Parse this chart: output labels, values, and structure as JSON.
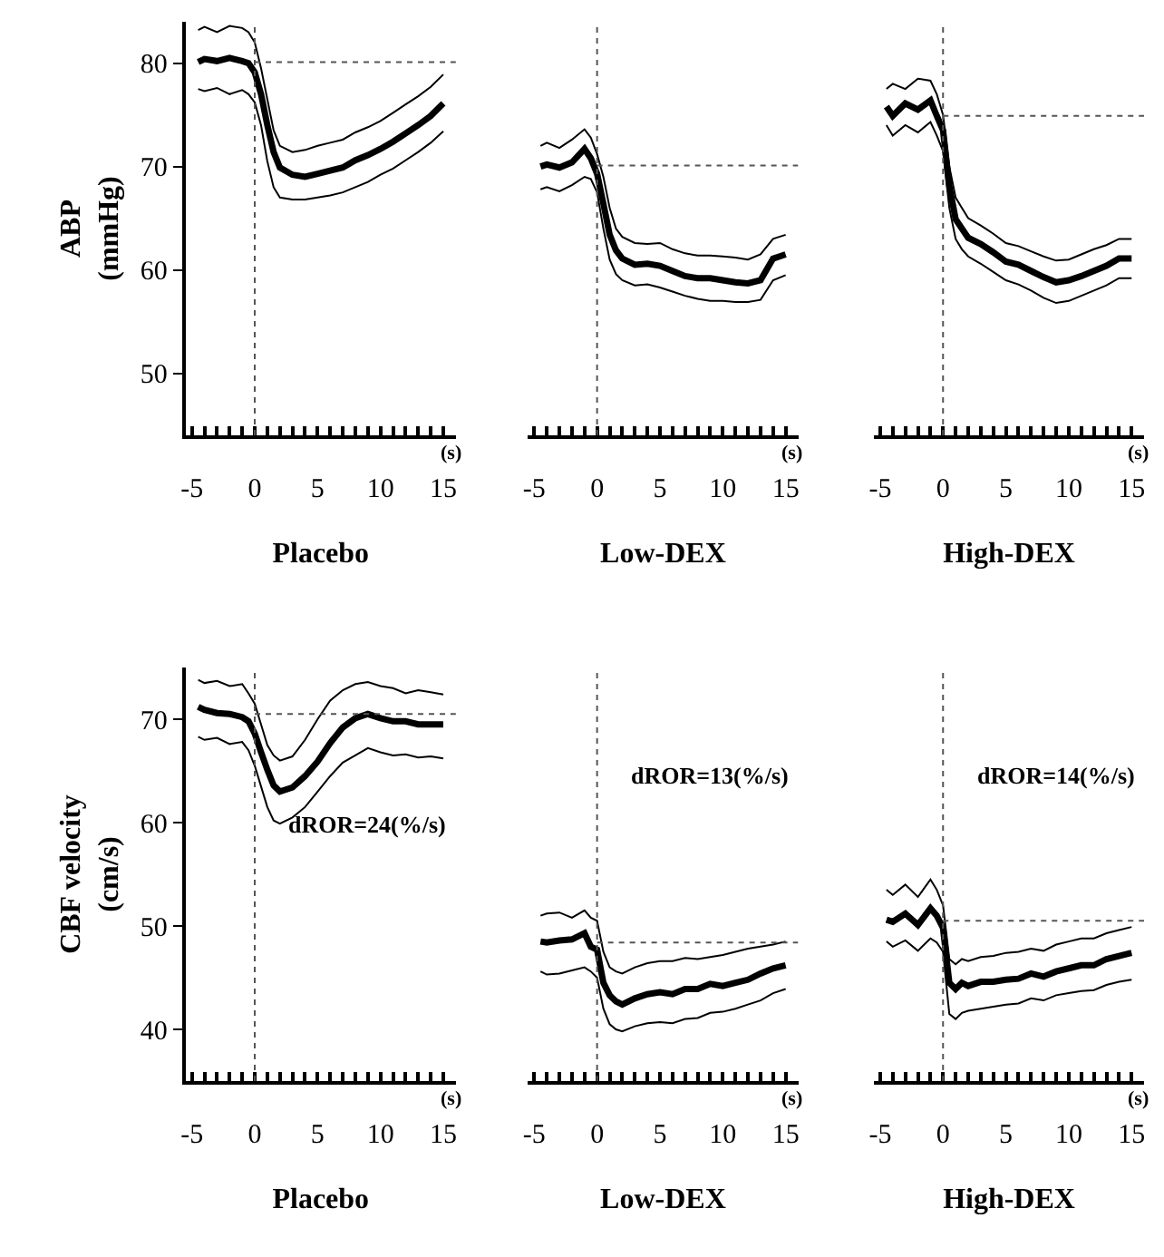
{
  "chart_data": [
    {
      "type": "line",
      "xlabel": "Placebo",
      "ylabel": "ABP (mmHg)",
      "xlim": [
        -5.5,
        16
      ],
      "ylim": [
        44,
        84
      ],
      "yticks": [
        50,
        60,
        70,
        80
      ],
      "xticks": [
        -5,
        {
          "value": -4,
          "label": null
        },
        {
          "value": -3,
          "label": null
        },
        {
          "value": -2,
          "label": null
        },
        {
          "value": -1,
          "label": null
        },
        0,
        {
          "value": 1,
          "label": null
        },
        {
          "value": 2,
          "label": null
        },
        {
          "value": 3,
          "label": null
        },
        {
          "value": 4,
          "label": null
        },
        5,
        {
          "value": 6,
          "label": null
        },
        {
          "value": 7,
          "label": null
        },
        {
          "value": 8,
          "label": null
        },
        {
          "value": 9,
          "label": null
        },
        10,
        {
          "value": 11,
          "label": null
        },
        {
          "value": 12,
          "label": null
        },
        {
          "value": 13,
          "label": null
        },
        {
          "value": 14,
          "label": null
        },
        15
      ],
      "marker": "none",
      "annotations": [
        "(s)"
      ],
      "ref_lines": [
        {
          "axis": "x",
          "value": 0,
          "line_style": "dotted"
        },
        {
          "axis": "y",
          "value": 80.1,
          "line_style": "dotted"
        }
      ],
      "x": [
        -4.5,
        -4,
        -3,
        -2,
        -1,
        -0.5,
        0,
        0.5,
        1,
        1.5,
        2,
        3,
        4,
        5,
        6,
        7,
        8,
        9,
        10,
        11,
        12,
        13,
        14,
        15
      ],
      "series": [
        {
          "color": "#000000",
          "values": [
            80.1,
            80.4,
            80.2,
            80.5,
            80.2,
            80.0,
            79.1,
            77.0,
            74.0,
            71.4,
            69.9,
            69.2,
            69.0,
            69.3,
            69.6,
            69.9,
            70.6,
            71.1,
            71.7,
            72.4,
            73.2,
            74.0,
            74.9,
            76.1
          ]
        },
        {
          "color": "#000000",
          "values": [
            83.2,
            83.5,
            83.0,
            83.6,
            83.4,
            83.0,
            82.0,
            79.5,
            76.5,
            73.5,
            72.0,
            71.4,
            71.6,
            72.0,
            72.3,
            72.6,
            73.3,
            73.8,
            74.4,
            75.2,
            76.0,
            76.8,
            77.7,
            78.9
          ]
        },
        {
          "color": "#000000",
          "values": [
            77.5,
            77.3,
            77.6,
            77.0,
            77.4,
            77.0,
            76.2,
            74.0,
            70.5,
            68.0,
            67.0,
            66.8,
            66.8,
            67.0,
            67.2,
            67.5,
            68.0,
            68.5,
            69.2,
            69.8,
            70.6,
            71.4,
            72.3,
            73.4
          ]
        }
      ]
    },
    {
      "type": "line",
      "xlabel": "Low-DEX",
      "xlim": [
        -5.5,
        16
      ],
      "ylim": [
        44,
        84
      ],
      "tick_labels": "x",
      "xticks": [
        -5,
        {
          "value": -4,
          "label": null
        },
        {
          "value": -3,
          "label": null
        },
        {
          "value": -2,
          "label": null
        },
        {
          "value": -1,
          "label": null
        },
        0,
        {
          "value": 1,
          "label": null
        },
        {
          "value": 2,
          "label": null
        },
        {
          "value": 3,
          "label": null
        },
        {
          "value": 4,
          "label": null
        },
        5,
        {
          "value": 6,
          "label": null
        },
        {
          "value": 7,
          "label": null
        },
        {
          "value": 8,
          "label": null
        },
        {
          "value": 9,
          "label": null
        },
        10,
        {
          "value": 11,
          "label": null
        },
        {
          "value": 12,
          "label": null
        },
        {
          "value": 13,
          "label": null
        },
        {
          "value": 14,
          "label": null
        },
        15
      ],
      "marker": "none",
      "annotations": [
        "(s)"
      ],
      "ref_lines": [
        {
          "axis": "x",
          "value": 0,
          "line_style": "dotted"
        },
        {
          "axis": "y",
          "value": 70.1,
          "line_style": "dotted"
        }
      ],
      "x": [
        -4.5,
        -4,
        -3,
        -2,
        -1,
        -0.5,
        0,
        0.5,
        1,
        1.5,
        2,
        3,
        4,
        5,
        6,
        7,
        8,
        9,
        10,
        11,
        12,
        13,
        14,
        15
      ],
      "series": [
        {
          "color": "#000000",
          "values": [
            70.0,
            70.2,
            69.9,
            70.4,
            71.7,
            70.8,
            69.3,
            66.4,
            63.4,
            61.9,
            61.1,
            60.5,
            60.6,
            60.4,
            59.9,
            59.4,
            59.2,
            59.2,
            59.0,
            58.8,
            58.7,
            59.0,
            61.1,
            61.5
          ]
        },
        {
          "color": "#000000",
          "values": [
            72.0,
            72.3,
            71.8,
            72.6,
            73.6,
            72.8,
            71.2,
            69.0,
            66.0,
            64.0,
            63.2,
            62.6,
            62.5,
            62.6,
            62.0,
            61.6,
            61.4,
            61.4,
            61.3,
            61.2,
            61.0,
            61.5,
            63.0,
            63.4
          ]
        },
        {
          "color": "#000000",
          "values": [
            67.8,
            68.0,
            67.6,
            68.2,
            69.0,
            68.8,
            67.5,
            64.0,
            61.0,
            59.6,
            59.0,
            58.5,
            58.6,
            58.3,
            57.9,
            57.5,
            57.2,
            57.0,
            57.0,
            56.9,
            56.9,
            57.1,
            59.0,
            59.5
          ]
        }
      ]
    },
    {
      "type": "line",
      "xlabel": "High-DEX",
      "xlim": [
        -5.5,
        16
      ],
      "ylim": [
        44,
        84
      ],
      "tick_labels": "x",
      "xticks": [
        -5,
        {
          "value": -4,
          "label": null
        },
        {
          "value": -3,
          "label": null
        },
        {
          "value": -2,
          "label": null
        },
        {
          "value": -1,
          "label": null
        },
        0,
        {
          "value": 1,
          "label": null
        },
        {
          "value": 2,
          "label": null
        },
        {
          "value": 3,
          "label": null
        },
        {
          "value": 4,
          "label": null
        },
        5,
        {
          "value": 6,
          "label": null
        },
        {
          "value": 7,
          "label": null
        },
        {
          "value": 8,
          "label": null
        },
        {
          "value": 9,
          "label": null
        },
        10,
        {
          "value": 11,
          "label": null
        },
        {
          "value": 12,
          "label": null
        },
        {
          "value": 13,
          "label": null
        },
        {
          "value": 14,
          "label": null
        },
        15
      ],
      "marker": "none",
      "annotations": [
        "(s)"
      ],
      "ref_lines": [
        {
          "axis": "x",
          "value": 0,
          "line_style": "dotted"
        },
        {
          "axis": "y",
          "value": 74.9,
          "line_style": "dotted"
        }
      ],
      "x": [
        -4.5,
        -4,
        -3,
        -2,
        -1,
        -0.5,
        0,
        0.5,
        1,
        1.5,
        2,
        3,
        4,
        5,
        6,
        7,
        8,
        9,
        10,
        11,
        12,
        13,
        14,
        15
      ],
      "series": [
        {
          "color": "#000000",
          "values": [
            75.8,
            74.9,
            76.1,
            75.5,
            76.4,
            74.9,
            73.5,
            68.1,
            64.9,
            64.0,
            63.1,
            62.5,
            61.7,
            60.8,
            60.5,
            59.9,
            59.3,
            58.8,
            59.0,
            59.4,
            59.9,
            60.4,
            61.1,
            61.1
          ]
        },
        {
          "color": "#000000",
          "values": [
            77.5,
            78.0,
            77.5,
            78.5,
            78.3,
            77.0,
            75.0,
            70.0,
            67.0,
            66.0,
            65.0,
            64.3,
            63.5,
            62.6,
            62.3,
            61.8,
            61.3,
            60.9,
            61.0,
            61.5,
            62.0,
            62.4,
            63.0,
            63.0
          ]
        },
        {
          "color": "#000000",
          "values": [
            74.0,
            73.0,
            74.0,
            73.3,
            74.3,
            73.0,
            71.5,
            66.0,
            63.0,
            62.0,
            61.3,
            60.6,
            59.8,
            59.0,
            58.6,
            58.0,
            57.3,
            56.8,
            57.0,
            57.5,
            58.0,
            58.5,
            59.2,
            59.2
          ]
        }
      ]
    },
    {
      "type": "line",
      "xlabel": "Placebo",
      "ylabel": "CBF velocity (cm/s)",
      "xlim": [
        -5.5,
        16
      ],
      "ylim": [
        35,
        75
      ],
      "yticks": [
        40,
        50,
        60,
        70
      ],
      "xticks": [
        -5,
        {
          "value": -4,
          "label": null
        },
        {
          "value": -3,
          "label": null
        },
        {
          "value": -2,
          "label": null
        },
        {
          "value": -1,
          "label": null
        },
        0,
        {
          "value": 1,
          "label": null
        },
        {
          "value": 2,
          "label": null
        },
        {
          "value": 3,
          "label": null
        },
        {
          "value": 4,
          "label": null
        },
        5,
        {
          "value": 6,
          "label": null
        },
        {
          "value": 7,
          "label": null
        },
        {
          "value": 8,
          "label": null
        },
        {
          "value": 9,
          "label": null
        },
        10,
        {
          "value": 11,
          "label": null
        },
        {
          "value": 12,
          "label": null
        },
        {
          "value": 13,
          "label": null
        },
        {
          "value": 14,
          "label": null
        },
        15
      ],
      "marker": "none",
      "annotations": [
        "(s)",
        "dROR=24(%/s)"
      ],
      "ref_lines": [
        {
          "axis": "x",
          "value": 0,
          "line_style": "dotted"
        },
        {
          "axis": "y",
          "value": 70.5,
          "line_style": "dotted"
        }
      ],
      "x": [
        -4.5,
        -4,
        -3,
        -2,
        -1,
        -0.5,
        0,
        0.5,
        1,
        1.5,
        2,
        3,
        4,
        5,
        6,
        7,
        8,
        9,
        10,
        11,
        12,
        13,
        14,
        15
      ],
      "series": [
        {
          "color": "#000000",
          "values": [
            71.2,
            70.9,
            70.6,
            70.5,
            70.2,
            69.8,
            68.6,
            66.8,
            65.1,
            63.6,
            63.0,
            63.4,
            64.5,
            65.9,
            67.7,
            69.2,
            70.1,
            70.5,
            70.1,
            69.8,
            69.8,
            69.5,
            69.5,
            69.5
          ]
        },
        {
          "color": "#000000",
          "values": [
            73.8,
            73.5,
            73.7,
            73.2,
            73.4,
            72.5,
            71.5,
            69.5,
            67.5,
            66.5,
            66.0,
            66.4,
            68.0,
            70.0,
            71.8,
            72.8,
            73.4,
            73.6,
            73.2,
            73.0,
            72.5,
            72.8,
            72.6,
            72.4
          ]
        },
        {
          "color": "#000000",
          "values": [
            68.3,
            68.0,
            68.2,
            67.6,
            67.8,
            67.0,
            65.5,
            63.5,
            61.5,
            60.2,
            59.9,
            60.5,
            61.5,
            63.0,
            64.5,
            65.8,
            66.5,
            67.2,
            66.8,
            66.5,
            66.6,
            66.3,
            66.4,
            66.2
          ]
        }
      ]
    },
    {
      "type": "line",
      "xlabel": "Low-DEX",
      "xlim": [
        -5.5,
        16
      ],
      "ylim": [
        35,
        75
      ],
      "tick_labels": "x",
      "xticks": [
        -5,
        {
          "value": -4,
          "label": null
        },
        {
          "value": -3,
          "label": null
        },
        {
          "value": -2,
          "label": null
        },
        {
          "value": -1,
          "label": null
        },
        0,
        {
          "value": 1,
          "label": null
        },
        {
          "value": 2,
          "label": null
        },
        {
          "value": 3,
          "label": null
        },
        {
          "value": 4,
          "label": null
        },
        5,
        {
          "value": 6,
          "label": null
        },
        {
          "value": 7,
          "label": null
        },
        {
          "value": 8,
          "label": null
        },
        {
          "value": 9,
          "label": null
        },
        10,
        {
          "value": 11,
          "label": null
        },
        {
          "value": 12,
          "label": null
        },
        {
          "value": 13,
          "label": null
        },
        {
          "value": 14,
          "label": null
        },
        15
      ],
      "marker": "none",
      "annotations": [
        "(s)",
        "dROR=13(%/s)"
      ],
      "ref_lines": [
        {
          "axis": "x",
          "value": 0,
          "line_style": "dotted"
        },
        {
          "axis": "y",
          "value": 48.4,
          "line_style": "dotted"
        }
      ],
      "x": [
        -4.5,
        -4,
        -3,
        -2,
        -1,
        -0.5,
        0,
        0.5,
        1,
        1.5,
        2,
        3,
        4,
        5,
        6,
        7,
        8,
        9,
        10,
        11,
        12,
        13,
        14,
        15
      ],
      "series": [
        {
          "color": "#000000",
          "values": [
            48.5,
            48.4,
            48.6,
            48.7,
            49.3,
            48.0,
            47.7,
            44.5,
            43.3,
            42.7,
            42.4,
            43.0,
            43.4,
            43.6,
            43.4,
            43.9,
            43.9,
            44.4,
            44.2,
            44.5,
            44.8,
            45.4,
            45.9,
            46.2
          ]
        },
        {
          "color": "#000000",
          "values": [
            51.0,
            51.2,
            51.3,
            50.8,
            51.5,
            50.8,
            50.5,
            47.5,
            46.0,
            45.6,
            45.4,
            46.0,
            46.4,
            46.6,
            46.6,
            46.9,
            46.8,
            47.0,
            47.2,
            47.5,
            47.8,
            48.0,
            48.2,
            48.5
          ]
        },
        {
          "color": "#000000",
          "values": [
            45.6,
            45.3,
            45.4,
            45.7,
            46.0,
            45.6,
            45.0,
            42.0,
            40.5,
            40.0,
            39.8,
            40.3,
            40.6,
            40.7,
            40.6,
            41.0,
            41.1,
            41.6,
            41.7,
            42.0,
            42.4,
            42.8,
            43.5,
            43.9
          ]
        }
      ]
    },
    {
      "type": "line",
      "xlabel": "High-DEX",
      "xlim": [
        -5.5,
        16
      ],
      "ylim": [
        35,
        75
      ],
      "tick_labels": "x",
      "xticks": [
        -5,
        {
          "value": -4,
          "label": null
        },
        {
          "value": -3,
          "label": null
        },
        {
          "value": -2,
          "label": null
        },
        {
          "value": -1,
          "label": null
        },
        0,
        {
          "value": 1,
          "label": null
        },
        {
          "value": 2,
          "label": null
        },
        {
          "value": 3,
          "label": null
        },
        {
          "value": 4,
          "label": null
        },
        5,
        {
          "value": 6,
          "label": null
        },
        {
          "value": 7,
          "label": null
        },
        {
          "value": 8,
          "label": null
        },
        {
          "value": 9,
          "label": null
        },
        10,
        {
          "value": 11,
          "label": null
        },
        {
          "value": 12,
          "label": null
        },
        {
          "value": 13,
          "label": null
        },
        {
          "value": 14,
          "label": null
        },
        15
      ],
      "marker": "none",
      "annotations": [
        "(s)",
        "dROR=14(%/s)"
      ],
      "ref_lines": [
        {
          "axis": "x",
          "value": 0,
          "line_style": "dotted"
        },
        {
          "axis": "y",
          "value": 50.5,
          "line_style": "dotted"
        }
      ],
      "x": [
        -4.5,
        -4,
        -3,
        -2,
        -1,
        -0.5,
        0,
        0.5,
        1,
        1.5,
        2,
        3,
        4,
        5,
        6,
        7,
        8,
        9,
        10,
        11,
        12,
        13,
        14,
        15
      ],
      "series": [
        {
          "color": "#000000",
          "values": [
            50.6,
            50.4,
            51.2,
            50.1,
            51.7,
            51.0,
            49.8,
            44.5,
            43.9,
            44.5,
            44.2,
            44.6,
            44.6,
            44.8,
            44.9,
            45.4,
            45.1,
            45.6,
            45.9,
            46.2,
            46.2,
            46.8,
            47.1,
            47.4
          ]
        },
        {
          "color": "#000000",
          "values": [
            53.5,
            53.0,
            54.0,
            52.8,
            54.5,
            53.5,
            52.0,
            46.8,
            46.3,
            46.8,
            46.6,
            47.0,
            47.1,
            47.4,
            47.5,
            47.8,
            47.6,
            48.2,
            48.5,
            48.8,
            48.8,
            49.3,
            49.6,
            49.9
          ]
        },
        {
          "color": "#000000",
          "values": [
            48.5,
            48.0,
            48.6,
            47.6,
            48.8,
            48.4,
            47.5,
            41.5,
            41.0,
            41.6,
            41.8,
            42.0,
            42.2,
            42.4,
            42.5,
            43.0,
            42.8,
            43.3,
            43.5,
            43.7,
            43.8,
            44.3,
            44.6,
            44.8
          ]
        }
      ]
    }
  ]
}
